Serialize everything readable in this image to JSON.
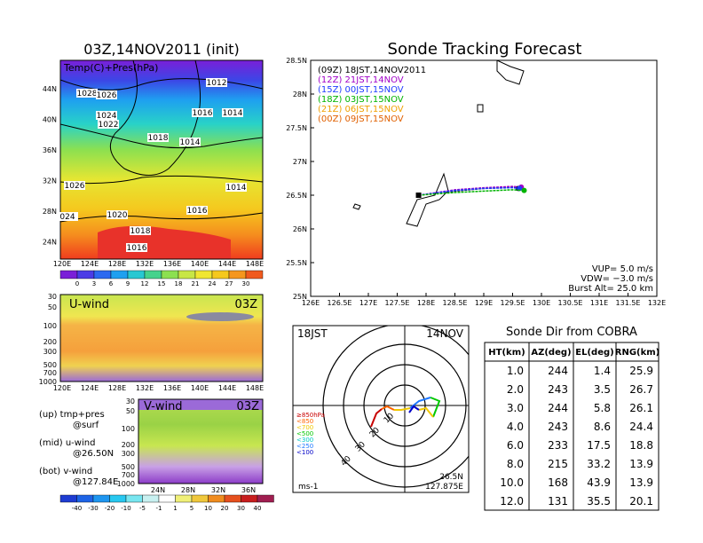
{
  "left_top": {
    "title": "03Z,14NOV2011 (init)",
    "overlay_label": "Temp(C)+Pres(hPa)",
    "lat_ticks": [
      "44N",
      "40N",
      "36N",
      "32N",
      "28N",
      "24N"
    ],
    "lon_ticks": [
      "120E",
      "124E",
      "128E",
      "132E",
      "136E",
      "140E",
      "144E",
      "148E"
    ],
    "isobar_labels": [
      "1028",
      "1026",
      "1012",
      "1024",
      "1016",
      "1014",
      "1022",
      "1018",
      "1014",
      "1026",
      "1014",
      "1016",
      "1020",
      "024",
      "1018",
      "1016"
    ],
    "colorbar_ticks": [
      "0",
      "3",
      "6",
      "9",
      "12",
      "15",
      "18",
      "21",
      "24",
      "27",
      "30"
    ]
  },
  "u_panel": {
    "label": "U-wind",
    "time": "03Z",
    "p_ticks": [
      "30",
      "50",
      "100",
      "200",
      "300",
      "500",
      "700",
      "1000"
    ],
    "lon_ticks": [
      "120E",
      "124E",
      "128E",
      "132E",
      "136E",
      "140E",
      "144E",
      "148E"
    ]
  },
  "v_panel": {
    "label": "V-wind",
    "time": "03Z",
    "p_ticks": [
      "30",
      "50",
      "100",
      "200",
      "300",
      "500",
      "700",
      "1000"
    ],
    "lat_ticks": [
      "24N",
      "28N",
      "32N",
      "36N"
    ]
  },
  "legend_notes": {
    "up": "(up) tmp+pres",
    "up_sub": "@surf",
    "mid": "(mid) u-wind",
    "mid_sub": "@26.50N",
    "bot": "(bot) v-wind",
    "bot_sub": "@127.84E"
  },
  "wind_colorbar_ticks": [
    "-40",
    "-30",
    "-20",
    "-10",
    "-5",
    "-1",
    "1",
    "5",
    "10",
    "20",
    "30",
    "40"
  ],
  "track": {
    "title": "Sonde Tracking Forecast",
    "lat_ticks": [
      "28.5N",
      "28N",
      "27.5N",
      "27N",
      "26.5N",
      "26N",
      "25.5N",
      "25N"
    ],
    "lon_ticks": [
      "126E",
      "126.5E",
      "127E",
      "127.5E",
      "128E",
      "128.5E",
      "129E",
      "129.5E",
      "130E",
      "130.5E",
      "131E",
      "131.5E",
      "132E"
    ],
    "legend": [
      {
        "text": "(09Z)  18JST,14NOV2011",
        "color": "#000000"
      },
      {
        "text": "(12Z)  21JST,14NOV",
        "color": "#a000c8"
      },
      {
        "text": "(15Z)  00JST,15NOV",
        "color": "#1e3cff"
      },
      {
        "text": "(18Z)  03JST,15NOV",
        "color": "#00b400"
      },
      {
        "text": "(21Z)  06JST,15NOV",
        "color": "#f0a000"
      },
      {
        "text": "(00Z)  09JST,15NOV",
        "color": "#e06000"
      }
    ],
    "params": {
      "vup": "VUP=  5.0  m/s",
      "vdw": "VDW= −3.0  m/s",
      "burst": "Burst Alt=  25.0  km"
    }
  },
  "polar": {
    "time": "18JST",
    "date": "14NOV",
    "ring_labels": [
      "10",
      "20",
      "30",
      "40"
    ],
    "pressure_legend": [
      "≥850hPa",
      "<850",
      "<700",
      "<500",
      "<300",
      "<250",
      "<100"
    ],
    "pressure_colors": [
      "#c80000",
      "#ff6400",
      "#f0c800",
      "#00c800",
      "#00c8c8",
      "#1e78ff",
      "#0000c8"
    ],
    "unit": "ms-1",
    "position_lat": "26.5N",
    "position_lon": "127.875E"
  },
  "table": {
    "title": "Sonde Dir from COBRA",
    "headers": [
      "HT(km)",
      "AZ(deg)",
      "EL(deg)",
      "RNG(km)"
    ],
    "rows": [
      [
        "1.0",
        "244",
        "1.4",
        "25.9"
      ],
      [
        "2.0",
        "243",
        "3.5",
        "26.7"
      ],
      [
        "3.0",
        "244",
        "5.8",
        "26.1"
      ],
      [
        "4.0",
        "243",
        "8.6",
        "24.4"
      ],
      [
        "6.0",
        "233",
        "17.5",
        "18.8"
      ],
      [
        "8.0",
        "215",
        "33.2",
        "13.9"
      ],
      [
        "10.0",
        "168",
        "43.9",
        "13.9"
      ],
      [
        "12.0",
        "131",
        "35.5",
        "20.1"
      ]
    ]
  },
  "chart_data": [
    {
      "type": "line",
      "title": "Sonde Tracking Forecast",
      "xlabel": "",
      "ylabel": "",
      "xlim": [
        126,
        132
      ],
      "ylim": [
        25,
        28.5
      ],
      "series": [
        {
          "name": "(09Z) 18JST,14NOV2011",
          "x": [
            127.87,
            128.5,
            129.0,
            129.5,
            129.6
          ],
          "y": [
            26.5,
            26.56,
            26.6,
            26.62,
            26.6
          ]
        },
        {
          "name": "(12Z) 21JST,14NOV",
          "x": [
            127.87,
            128.5,
            129.0,
            129.5,
            129.65
          ],
          "y": [
            26.5,
            26.58,
            26.61,
            26.63,
            26.62
          ]
        },
        {
          "name": "(15Z) 00JST,15NOV",
          "x": [
            127.87,
            128.5,
            129.0,
            129.5,
            129.62
          ],
          "y": [
            26.5,
            26.57,
            26.6,
            26.61,
            26.6
          ]
        },
        {
          "name": "(18Z) 03JST,15NOV",
          "x": [
            127.87,
            128.5,
            129.0,
            129.5,
            129.7
          ],
          "y": [
            26.5,
            26.54,
            26.56,
            26.58,
            26.57
          ]
        }
      ]
    },
    {
      "type": "table",
      "title": "Sonde Dir from COBRA",
      "columns": [
        "HT(km)",
        "AZ(deg)",
        "EL(deg)",
        "RNG(km)"
      ],
      "rows": [
        [
          1.0,
          244,
          1.4,
          25.9
        ],
        [
          2.0,
          243,
          3.5,
          26.7
        ],
        [
          3.0,
          244,
          5.8,
          26.1
        ],
        [
          4.0,
          243,
          8.6,
          24.4
        ],
        [
          6.0,
          233,
          17.5,
          18.8
        ],
        [
          8.0,
          215,
          33.2,
          13.9
        ],
        [
          10.0,
          168,
          43.9,
          13.9
        ],
        [
          12.0,
          131,
          35.5,
          20.1
        ]
      ]
    }
  ]
}
